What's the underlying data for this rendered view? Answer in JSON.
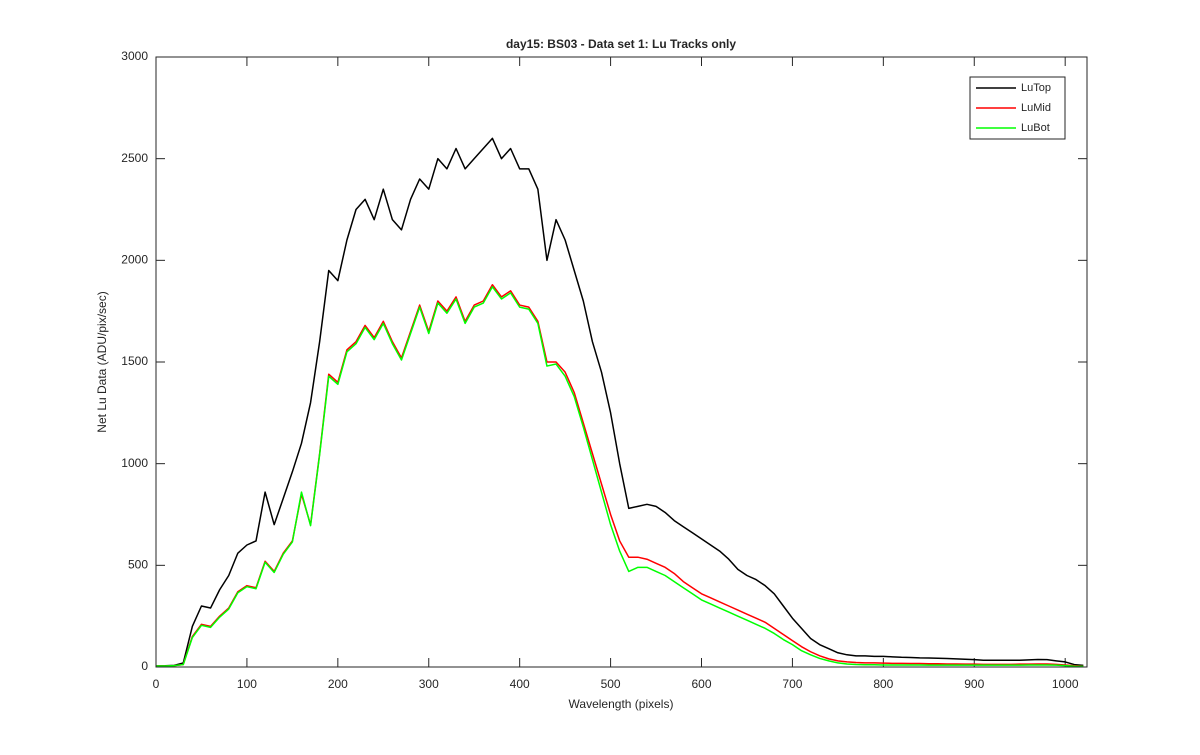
{
  "chart_data": {
    "type": "line",
    "title": "day15: BS03 - Data set 1: Lu Tracks only",
    "xlabel": "Wavelength (pixels)",
    "ylabel": "Net Lu Data (ADU/pix/sec)",
    "x": [
      0,
      10,
      20,
      30,
      40,
      50,
      60,
      70,
      80,
      90,
      100,
      110,
      120,
      130,
      140,
      150,
      160,
      170,
      180,
      190,
      200,
      210,
      220,
      230,
      240,
      250,
      260,
      270,
      280,
      290,
      300,
      310,
      320,
      330,
      340,
      350,
      360,
      370,
      380,
      390,
      400,
      410,
      420,
      430,
      440,
      450,
      460,
      470,
      480,
      490,
      500,
      510,
      520,
      530,
      540,
      550,
      560,
      570,
      580,
      590,
      600,
      610,
      620,
      630,
      640,
      650,
      660,
      670,
      680,
      690,
      700,
      710,
      720,
      730,
      740,
      750,
      760,
      770,
      780,
      790,
      800,
      810,
      820,
      830,
      840,
      850,
      860,
      870,
      880,
      890,
      900,
      910,
      920,
      930,
      940,
      950,
      960,
      970,
      980,
      990,
      1000,
      1010,
      1020
    ],
    "series": [
      {
        "name": "LuTop",
        "color": "#000000",
        "values": [
          5,
          6,
          8,
          20,
          200,
          300,
          290,
          380,
          450,
          560,
          600,
          620,
          860,
          700,
          830,
          960,
          1100,
          1300,
          1600,
          1950,
          1900,
          2100,
          2250,
          2300,
          2200,
          2350,
          2200,
          2150,
          2300,
          2400,
          2350,
          2500,
          2450,
          2550,
          2450,
          2500,
          2550,
          2600,
          2500,
          2550,
          2450,
          2450,
          2350,
          2000,
          2200,
          2100,
          1950,
          1800,
          1600,
          1450,
          1250,
          1000,
          780,
          790,
          800,
          790,
          760,
          720,
          690,
          660,
          630,
          600,
          570,
          530,
          480,
          450,
          430,
          400,
          360,
          300,
          240,
          190,
          140,
          110,
          90,
          70,
          60,
          55,
          55,
          52,
          52,
          50,
          48,
          47,
          45,
          44,
          43,
          42,
          40,
          38,
          36,
          33,
          33,
          33,
          33,
          33,
          35,
          37,
          36,
          30,
          25,
          12,
          8
        ]
      },
      {
        "name": "LuMid",
        "color": "#ff0000",
        "values": [
          5,
          5,
          7,
          12,
          150,
          210,
          200,
          250,
          290,
          370,
          400,
          390,
          520,
          470,
          560,
          620,
          850,
          700,
          1050,
          1440,
          1400,
          1560,
          1600,
          1680,
          1620,
          1700,
          1600,
          1520,
          1650,
          1780,
          1650,
          1800,
          1750,
          1820,
          1700,
          1780,
          1800,
          1880,
          1820,
          1850,
          1780,
          1770,
          1700,
          1500,
          1500,
          1450,
          1350,
          1200,
          1050,
          900,
          750,
          620,
          540,
          540,
          530,
          510,
          490,
          460,
          420,
          390,
          360,
          340,
          320,
          300,
          280,
          260,
          240,
          220,
          190,
          160,
          130,
          100,
          75,
          55,
          40,
          30,
          25,
          22,
          20,
          20,
          19,
          18,
          18,
          17,
          17,
          16,
          16,
          15,
          15,
          14,
          14,
          13,
          13,
          13,
          13,
          14,
          14,
          15,
          15,
          13,
          10,
          6,
          4
        ]
      },
      {
        "name": "LuBot",
        "color": "#00ff00",
        "values": [
          5,
          5,
          7,
          12,
          145,
          205,
          195,
          245,
          285,
          365,
          395,
          385,
          515,
          465,
          555,
          615,
          860,
          695,
          1045,
          1430,
          1390,
          1550,
          1590,
          1670,
          1610,
          1690,
          1590,
          1510,
          1640,
          1770,
          1640,
          1790,
          1740,
          1810,
          1690,
          1770,
          1790,
          1870,
          1810,
          1840,
          1770,
          1760,
          1690,
          1480,
          1490,
          1430,
          1330,
          1180,
          1020,
          860,
          700,
          570,
          470,
          490,
          490,
          470,
          450,
          420,
          390,
          360,
          330,
          310,
          290,
          270,
          250,
          230,
          210,
          190,
          165,
          135,
          110,
          80,
          60,
          42,
          30,
          20,
          15,
          12,
          11,
          11,
          10,
          10,
          10,
          10,
          10,
          9,
          9,
          9,
          9,
          9,
          9,
          9,
          9,
          9,
          9,
          9,
          10,
          10,
          10,
          9,
          7,
          4,
          3
        ]
      }
    ],
    "xlim": [
      0,
      1024
    ],
    "ylim": [
      0,
      3000
    ],
    "xticks": [
      0,
      100,
      200,
      300,
      400,
      500,
      600,
      700,
      800,
      900,
      1000
    ],
    "yticks": [
      0,
      500,
      1000,
      1500,
      2000,
      2500,
      3000
    ],
    "legend": "upper right"
  }
}
